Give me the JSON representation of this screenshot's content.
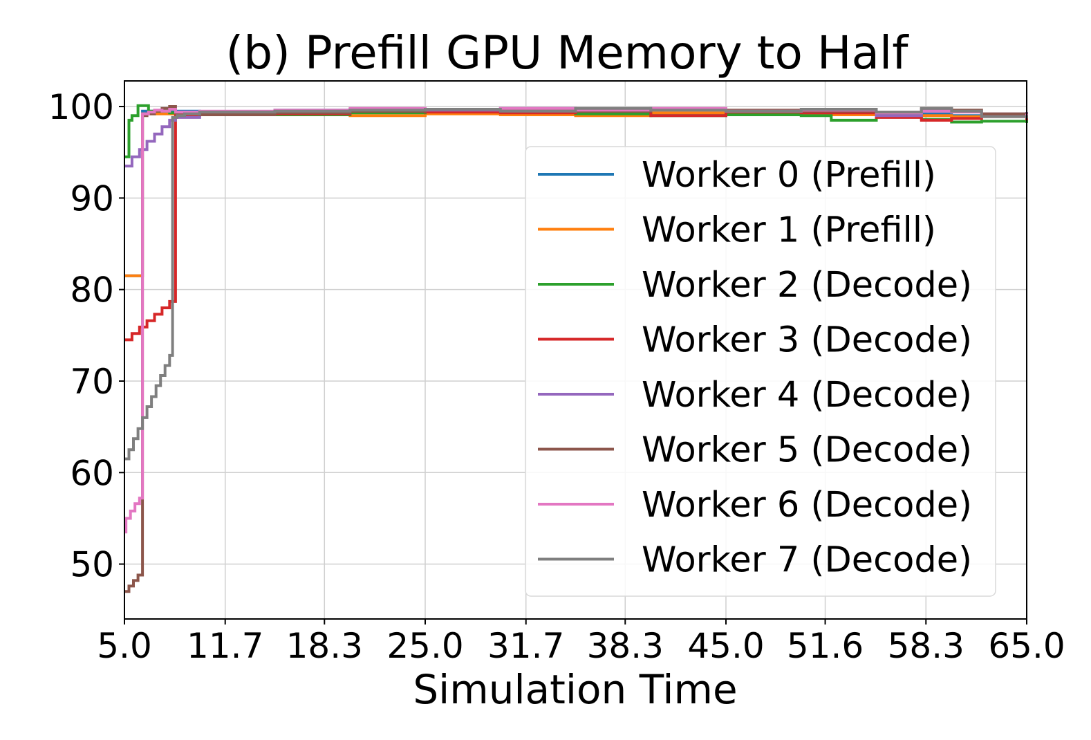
{
  "chart_data": {
    "type": "line",
    "title": "(b) Prefill GPU Memory to Half",
    "xlabel": "Simulation Time",
    "ylabel": "",
    "xlim": [
      5.0,
      65.0
    ],
    "ylim": [
      44,
      102.8
    ],
    "x_ticks": [
      "5.0",
      "11.7",
      "18.3",
      "25.0",
      "31.7",
      "38.3",
      "45.0",
      "51.6",
      "58.3",
      "65.0"
    ],
    "y_ticks": [
      50,
      60,
      70,
      80,
      90,
      100
    ],
    "grid": true,
    "legend_position": "right",
    "series": [
      {
        "name": "Worker 0 (Prefill)",
        "color": "#1f77b4",
        "x": [
          5.0,
          6.2,
          6.2,
          10.0,
          15.0,
          20.0,
          25.0,
          30.0,
          35.0,
          40.0,
          45.0,
          50.0,
          55.0,
          60.0,
          65.0
        ],
        "y": [
          81.5,
          81.5,
          99.5,
          99.4,
          99.6,
          99.5,
          99.4,
          99.6,
          99.5,
          99.3,
          99.5,
          99.4,
          99.2,
          99.0,
          99.0
        ]
      },
      {
        "name": "Worker 1 (Prefill)",
        "color": "#ff7f0e",
        "x": [
          5.0,
          6.2,
          6.2,
          10.0,
          15.0,
          20.0,
          25.0,
          30.0,
          35.0,
          40.0,
          45.0,
          50.0,
          55.0,
          60.0,
          65.0
        ],
        "y": [
          81.5,
          81.5,
          99.2,
          99.1,
          99.3,
          99.0,
          99.2,
          99.1,
          99.0,
          99.3,
          99.2,
          99.1,
          99.0,
          98.9,
          98.8
        ]
      },
      {
        "name": "Worker 2 (Decode)",
        "color": "#2ca02c",
        "x": [
          5.0,
          5.3,
          5.3,
          5.5,
          5.5,
          5.9,
          5.9,
          6.6,
          6.6,
          8.0,
          10.0,
          15.0,
          20.0,
          25.0,
          30.0,
          35.0,
          40.0,
          45.0,
          50.0,
          52.0,
          55.0,
          58.0,
          60.0,
          62.0,
          65.0
        ],
        "y": [
          94.5,
          94.5,
          98.5,
          98.5,
          99.0,
          99.0,
          100.1,
          100.1,
          99.5,
          99.3,
          99.2,
          99.1,
          99.3,
          99.5,
          99.4,
          99.2,
          99.0,
          99.1,
          99.0,
          98.5,
          99.0,
          98.6,
          98.3,
          98.4,
          98.2
        ]
      },
      {
        "name": "Worker 3 (Decode)",
        "color": "#d62728",
        "x": [
          5.0,
          5.5,
          6.0,
          6.5,
          7.0,
          7.5,
          8.0,
          8.4,
          8.4,
          10.0,
          15.0,
          20.0,
          25.0,
          30.0,
          35.0,
          40.0,
          45.0,
          50.0,
          55.0,
          58.0,
          60.0,
          62.0,
          65.0
        ],
        "y": [
          74.5,
          75.2,
          75.9,
          76.6,
          77.3,
          78.0,
          78.7,
          79.2,
          99.0,
          99.3,
          99.2,
          99.5,
          99.4,
          99.3,
          99.5,
          99.0,
          99.4,
          99.3,
          98.8,
          98.5,
          98.7,
          99.1,
          98.5
        ]
      },
      {
        "name": "Worker 4 (Decode)",
        "color": "#9467bd",
        "x": [
          5.0,
          5.5,
          6.0,
          6.5,
          7.0,
          7.5,
          8.0,
          8.4,
          10.0,
          15.0,
          20.0,
          25.0,
          30.0,
          35.0,
          40.0,
          45.0,
          50.0,
          55.0,
          58.0,
          60.0,
          62.0,
          65.0
        ],
        "y": [
          93.5,
          94.5,
          95.3,
          96.2,
          97.0,
          97.8,
          98.5,
          98.8,
          99.4,
          99.5,
          99.7,
          99.6,
          99.8,
          99.6,
          99.7,
          99.5,
          99.6,
          99.0,
          99.7,
          99.5,
          99.2,
          99.4
        ]
      },
      {
        "name": "Worker 5 (Decode)",
        "color": "#8c564b",
        "x": [
          5.0,
          5.3,
          5.6,
          5.9,
          6.2,
          6.2,
          6.5,
          7.0,
          7.5,
          8.0,
          8.4,
          10.0,
          15.0,
          20.0,
          25.0,
          30.0,
          35.0,
          40.0,
          45.0,
          50.0,
          55.0,
          58.0,
          60.0,
          62.0,
          65.0
        ],
        "y": [
          47.0,
          47.6,
          48.2,
          48.8,
          49.5,
          99.0,
          99.2,
          99.5,
          99.8,
          100.0,
          99.3,
          99.1,
          99.3,
          99.5,
          99.7,
          99.6,
          99.5,
          99.7,
          99.6,
          99.5,
          99.4,
          99.8,
          99.6,
          99.2,
          99.3
        ]
      },
      {
        "name": "Worker 6 (Decode)",
        "color": "#e377c2",
        "x": [
          5.0,
          5.1,
          5.4,
          5.7,
          6.0,
          6.2,
          6.2,
          6.6,
          7.0,
          7.5,
          8.0,
          8.4,
          10.0,
          15.0,
          20.0,
          25.0,
          30.0,
          35.0,
          40.0,
          45.0,
          50.0,
          55.0,
          58.0,
          60.0,
          62.0,
          65.0
        ],
        "y": [
          53.5,
          55.0,
          55.8,
          56.6,
          57.2,
          58.5,
          99.2,
          99.4,
          99.6,
          99.5,
          99.7,
          99.4,
          99.5,
          99.6,
          99.8,
          99.7,
          99.8,
          99.6,
          99.8,
          99.5,
          99.6,
          99.3,
          99.5,
          99.4,
          98.9,
          99.2
        ]
      },
      {
        "name": "Worker 7 (Decode)",
        "color": "#7f7f7f",
        "x": [
          5.0,
          5.3,
          5.6,
          5.9,
          6.2,
          6.5,
          6.8,
          7.1,
          7.4,
          7.7,
          8.0,
          8.2,
          8.2,
          8.5,
          9.0,
          10.0,
          15.0,
          20.0,
          25.0,
          30.0,
          35.0,
          40.0,
          45.0,
          50.0,
          55.0,
          58.0,
          60.0,
          62.0,
          65.0
        ],
        "y": [
          61.5,
          62.5,
          63.7,
          64.8,
          66.0,
          67.2,
          68.3,
          69.5,
          70.6,
          71.7,
          72.8,
          73.5,
          98.8,
          99.0,
          99.2,
          99.4,
          99.5,
          99.6,
          99.7,
          99.5,
          99.8,
          99.6,
          99.5,
          99.7,
          99.4,
          99.8,
          99.5,
          98.9,
          98.7
        ]
      }
    ]
  }
}
